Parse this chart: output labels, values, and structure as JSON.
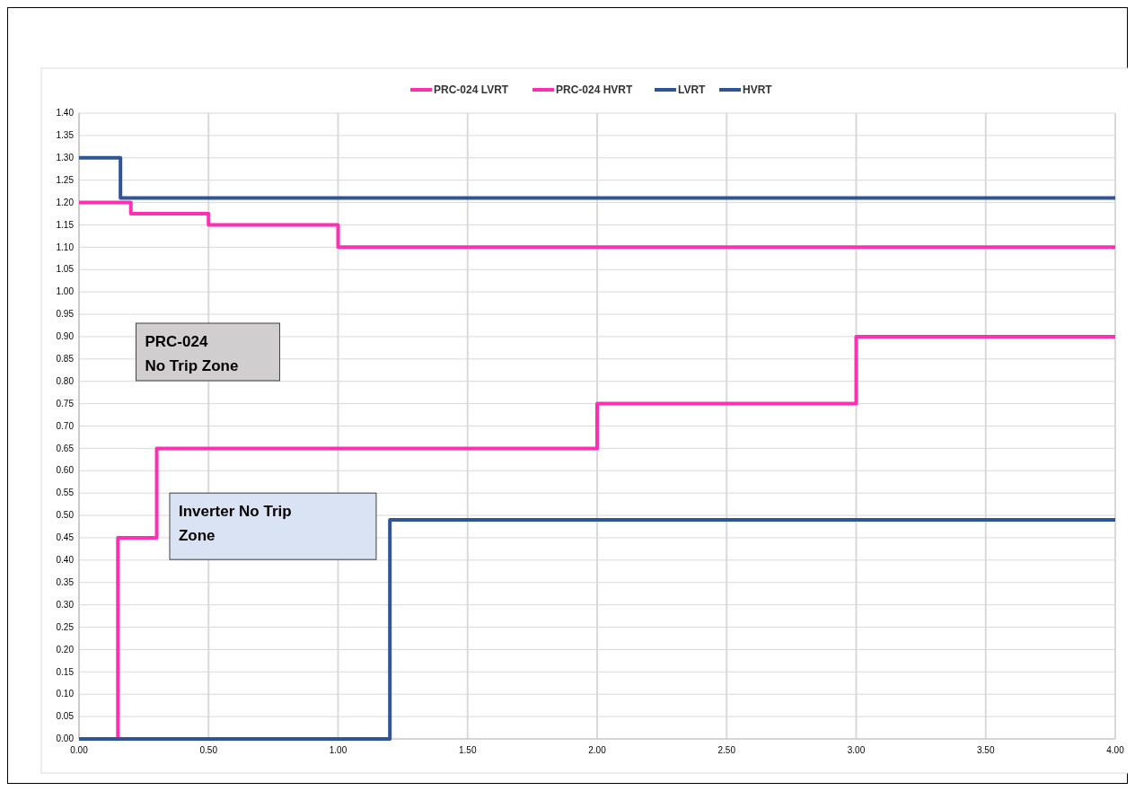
{
  "chart_data": {
    "type": "step",
    "xlim": [
      0,
      4
    ],
    "xticks": [
      {
        "value": 0,
        "label": "0.00"
      },
      {
        "value": 0.5,
        "label": "0.50"
      },
      {
        "value": 1,
        "label": "1.00"
      },
      {
        "value": 1.5,
        "label": "1.50"
      },
      {
        "value": 2,
        "label": "2.00"
      },
      {
        "value": 2.5,
        "label": "2.50"
      },
      {
        "value": 3,
        "label": "3.00"
      },
      {
        "value": 3.5,
        "label": "3.50"
      },
      {
        "value": 4,
        "label": "4.00"
      }
    ],
    "ylim": [
      0,
      1.4
    ],
    "yticks": [
      {
        "value": 0,
        "label": "0.00"
      },
      {
        "value": 0.05,
        "label": "0.05"
      },
      {
        "value": 0.1,
        "label": "0.10"
      },
      {
        "value": 0.15,
        "label": "0.15"
      },
      {
        "value": 0.2,
        "label": "0.20"
      },
      {
        "value": 0.25,
        "label": "0.25"
      },
      {
        "value": 0.3,
        "label": "0.30"
      },
      {
        "value": 0.35,
        "label": "0.35"
      },
      {
        "value": 0.4,
        "label": "0.40"
      },
      {
        "value": 0.45,
        "label": "0.45"
      },
      {
        "value": 0.5,
        "label": "0.50"
      },
      {
        "value": 0.55,
        "label": "0.55"
      },
      {
        "value": 0.6,
        "label": "0.60"
      },
      {
        "value": 0.65,
        "label": "0.65"
      },
      {
        "value": 0.7,
        "label": "0.70"
      },
      {
        "value": 0.75,
        "label": "0.75"
      },
      {
        "value": 0.8,
        "label": "0.80"
      },
      {
        "value": 0.85,
        "label": "0.85"
      },
      {
        "value": 0.9,
        "label": "0.90"
      },
      {
        "value": 0.95,
        "label": "0.95"
      },
      {
        "value": 1,
        "label": "1.00"
      },
      {
        "value": 1.05,
        "label": "1.05"
      },
      {
        "value": 1.1,
        "label": "1.10"
      },
      {
        "value": 1.15,
        "label": "1.15"
      },
      {
        "value": 1.2,
        "label": "1.20"
      },
      {
        "value": 1.25,
        "label": "1.25"
      },
      {
        "value": 1.3,
        "label": "1.30"
      },
      {
        "value": 1.35,
        "label": "1.35"
      },
      {
        "value": 1.4,
        "label": "1.40"
      }
    ],
    "grid": true,
    "legend": "top",
    "marker": "none",
    "line_style": "solid",
    "series": [
      {
        "name": "PRC-024 LVRT",
        "color": "#ff2fb4",
        "x": [
          0,
          0.15,
          0.3,
          2,
          3,
          4
        ],
        "values": [
          0,
          0.45,
          0.65,
          0.75,
          0.9,
          0.9
        ]
      },
      {
        "name": "PRC-024 HVRT",
        "color": "#ff2fb4",
        "x": [
          0,
          0.2,
          0.5,
          1,
          4
        ],
        "values": [
          1.2,
          1.175,
          1.15,
          1.1,
          1.1
        ]
      },
      {
        "name": "LVRT",
        "color": "#2f5597",
        "x": [
          0,
          1.2,
          4
        ],
        "values": [
          0,
          0.49,
          0.49
        ]
      },
      {
        "name": "HVRT",
        "color": "#2f5597",
        "x": [
          0,
          0.16,
          4
        ],
        "values": [
          1.3,
          1.21,
          1.21
        ]
      }
    ],
    "annotations": [
      "PRC-024\nNo Trip Zone",
      "Inverter No Trip Zone"
    ]
  }
}
